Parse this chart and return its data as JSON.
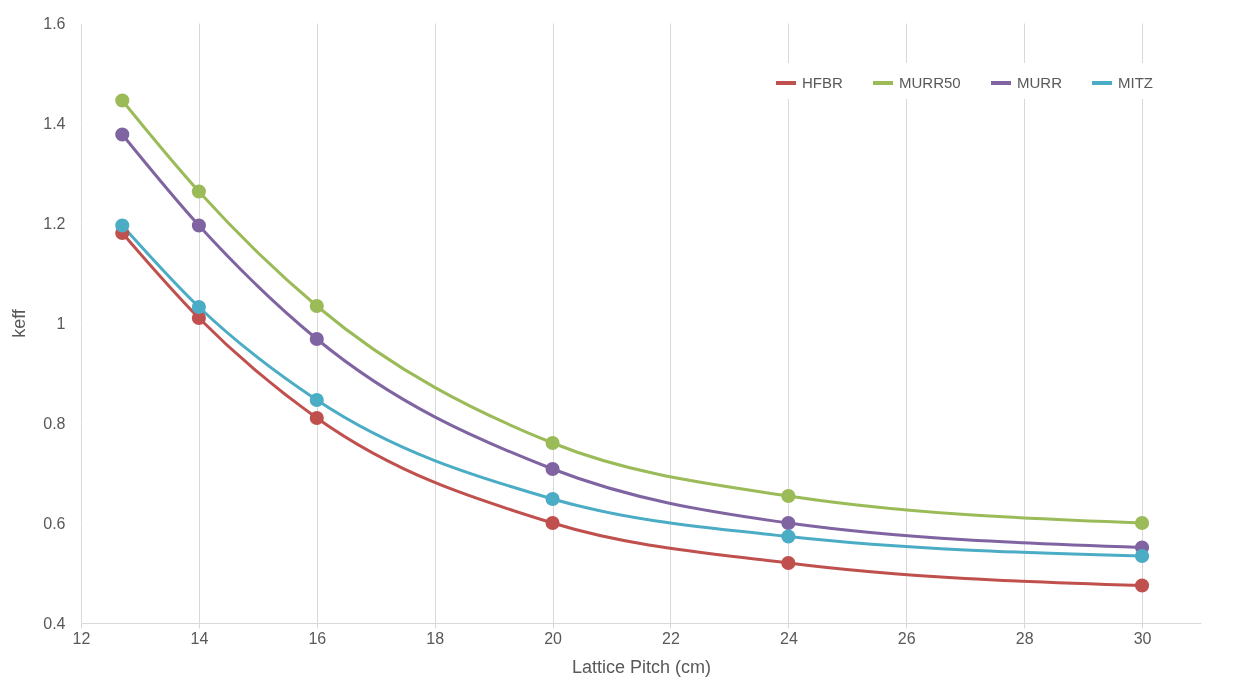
{
  "chart_data": {
    "type": "line",
    "xlabel": "Lattice Pitch (cm)",
    "ylabel": "keff",
    "x": [
      12.7,
      14,
      16,
      20,
      24,
      30
    ],
    "series": [
      {
        "name": "HFBR",
        "color": "#c0504d",
        "values": [
          1.18,
          1.01,
          0.81,
          0.6,
          0.52,
          0.475
        ]
      },
      {
        "name": "MURR50",
        "color": "#9bbb59",
        "values": [
          1.445,
          1.263,
          1.034,
          0.76,
          0.654,
          0.6
        ]
      },
      {
        "name": "MURR",
        "color": "#8064a2",
        "values": [
          1.377,
          1.195,
          0.968,
          0.708,
          0.6,
          0.551
        ]
      },
      {
        "name": "MITZ",
        "color": "#4bacc6",
        "values": [
          1.195,
          1.032,
          0.846,
          0.648,
          0.573,
          0.534
        ]
      }
    ],
    "xlim": [
      12,
      31
    ],
    "xticks": [
      12,
      14,
      16,
      18,
      20,
      22,
      24,
      26,
      28,
      30
    ],
    "ylim": [
      0.4,
      1.6
    ],
    "yticks": [
      0.4,
      0.6,
      0.8,
      1,
      1.2,
      1.4,
      1.6
    ],
    "grid": "x",
    "legend": "top right",
    "marker": "circle",
    "line_style": "solid"
  }
}
